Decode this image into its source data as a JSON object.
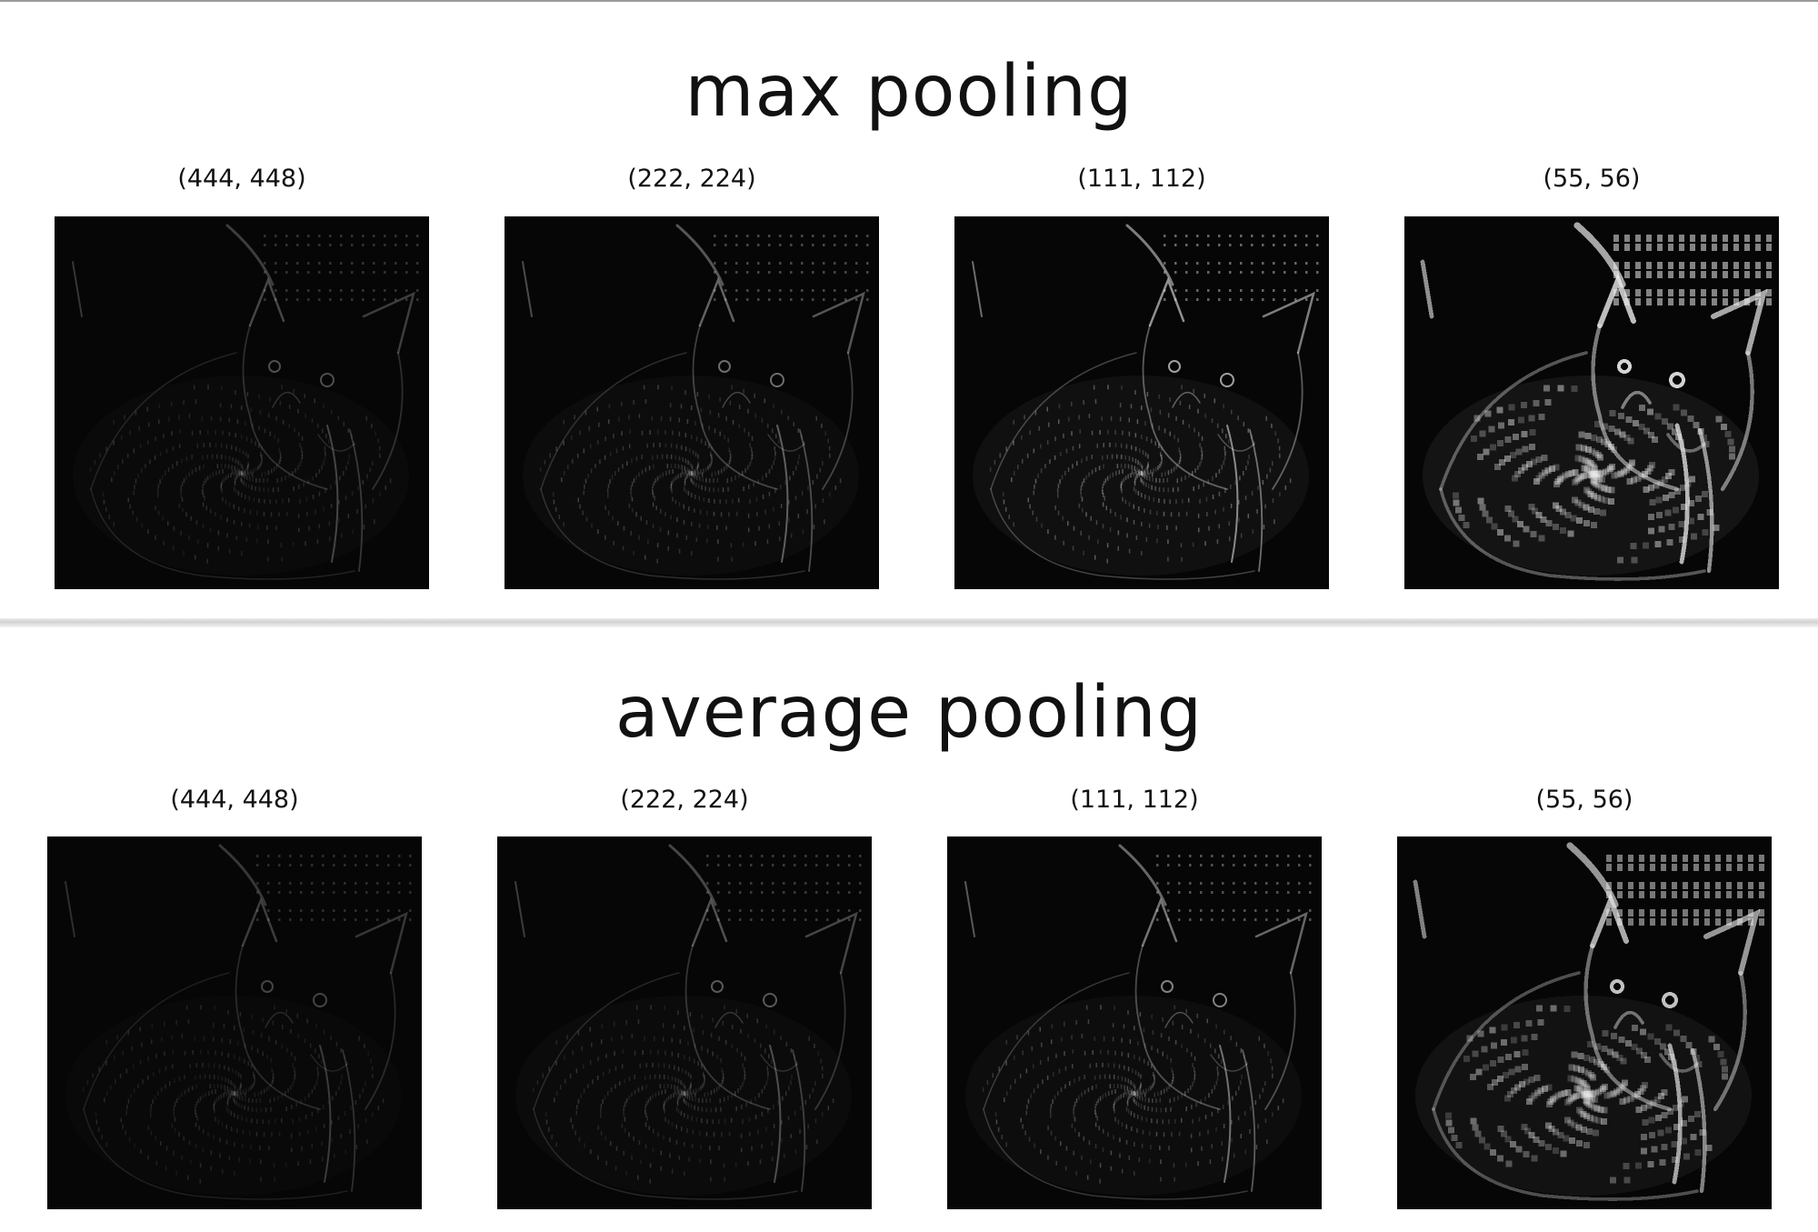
{
  "sections": [
    {
      "title": "max pooling",
      "panels": [
        {
          "label": "(444, 448)",
          "brightness": 0.35
        },
        {
          "label": "(222, 224)",
          "brightness": 0.5
        },
        {
          "label": "(111, 112)",
          "brightness": 0.75
        },
        {
          "label": "(55, 56)",
          "brightness": 1.0
        }
      ]
    },
    {
      "title": "average pooling",
      "panels": [
        {
          "label": "(444, 448)",
          "brightness": 0.3
        },
        {
          "label": "(222, 224)",
          "brightness": 0.4
        },
        {
          "label": "(111, 112)",
          "brightness": 0.6
        },
        {
          "label": "(55, 56)",
          "brightness": 0.9
        }
      ]
    }
  ]
}
